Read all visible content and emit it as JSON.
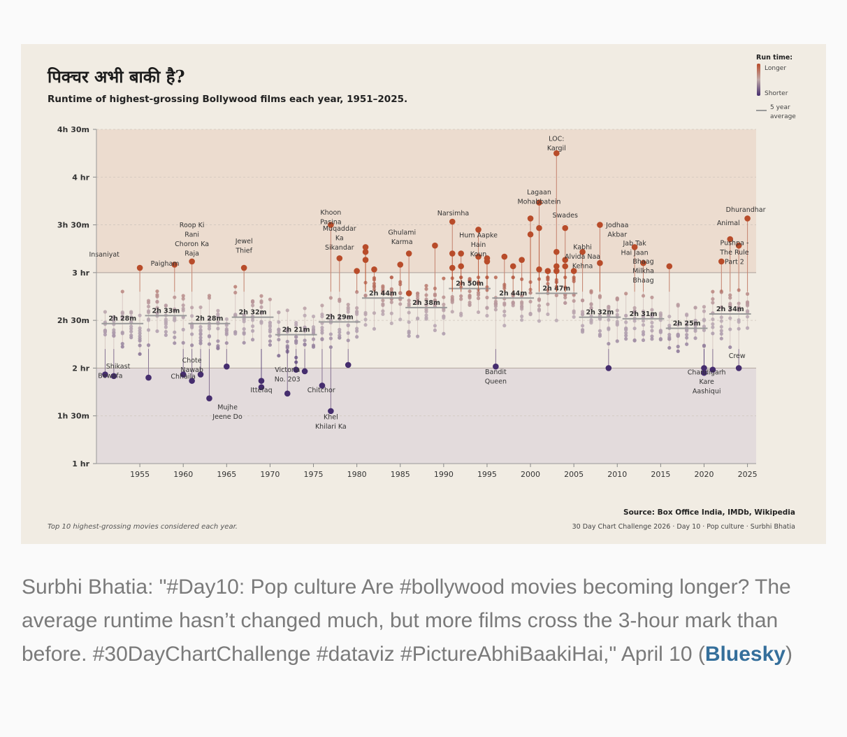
{
  "chart_data": {
    "type": "scatter",
    "title": "पिक्चर अभी बाकी है?",
    "subtitle": "Runtime of highest-grossing Bollywood films each year, 1951–2025.",
    "y_ticks": [
      "1 hr",
      "1h 30m",
      "2 hr",
      "2h 30m",
      "3 hr",
      "3h 30m",
      "4 hr",
      "4h 30m"
    ],
    "y_tick_values": [
      60,
      90,
      120,
      150,
      180,
      210,
      240,
      270
    ],
    "ylim": [
      60,
      270
    ],
    "x_ticks": [
      "1955",
      "1960",
      "1965",
      "1970",
      "1975",
      "1980",
      "1985",
      "1990",
      "1995",
      "2000",
      "2005",
      "2010",
      "2015",
      "2020",
      "2025"
    ],
    "x_tick_values": [
      1955,
      1960,
      1965,
      1970,
      1975,
      1980,
      1985,
      1990,
      1995,
      2000,
      2005,
      2010,
      2015,
      2020,
      2025
    ],
    "xlim": [
      1950,
      2026
    ],
    "legend": {
      "title": "Run time:",
      "longer": "Longer",
      "shorter": "Shorter",
      "average_line_1": "5 year",
      "average_line_2": "average",
      "placement": "top-right"
    },
    "colors": {
      "long": "#b84c2a",
      "short": "#452d6e",
      "mid": "#b9a8b3",
      "band_long": "#ecdccf",
      "band_short": "#e3dbdc",
      "avg": "#9a9a9a"
    },
    "five_year_averages": [
      {
        "label": "2h 28m",
        "start": 1951,
        "end": 1955,
        "value": 148
      },
      {
        "label": "2h 33m",
        "start": 1956,
        "end": 1960,
        "value": 153
      },
      {
        "label": "2h 28m",
        "start": 1961,
        "end": 1965,
        "value": 148
      },
      {
        "label": "2h 32m",
        "start": 1966,
        "end": 1970,
        "value": 152
      },
      {
        "label": "2h 21m",
        "start": 1971,
        "end": 1975,
        "value": 141
      },
      {
        "label": "2h 29m",
        "start": 1976,
        "end": 1980,
        "value": 149
      },
      {
        "label": "2h 44m",
        "start": 1981,
        "end": 1985,
        "value": 164
      },
      {
        "label": "2h 38m",
        "start": 1986,
        "end": 1990,
        "value": 158
      },
      {
        "label": "2h 50m",
        "start": 1991,
        "end": 1995,
        "value": 170
      },
      {
        "label": "2h 44m",
        "start": 1996,
        "end": 2000,
        "value": 164
      },
      {
        "label": "2h 47m",
        "start": 2001,
        "end": 2005,
        "value": 167
      },
      {
        "label": "2h 32m",
        "start": 2006,
        "end": 2010,
        "value": 152
      },
      {
        "label": "2h 31m",
        "start": 2011,
        "end": 2015,
        "value": 151
      },
      {
        "label": "2h 25m",
        "start": 2016,
        "end": 2020,
        "value": 145
      },
      {
        "label": "2h 34m",
        "start": 2021,
        "end": 2025,
        "value": 154
      }
    ],
    "highlighted_films": [
      {
        "year": 1951,
        "runtime": 116,
        "label": "Bewafa"
      },
      {
        "year": 1952,
        "runtime": 115,
        "label": "Shikast"
      },
      {
        "year": 1955,
        "runtime": 183,
        "label": "Insaniyat"
      },
      {
        "year": 1956,
        "runtime": 114
      },
      {
        "year": 1959,
        "runtime": 185,
        "label": "Paigham"
      },
      {
        "year": 1960,
        "runtime": 116
      },
      {
        "year": 1961,
        "runtime": 112,
        "label": "Chhaila"
      },
      {
        "year": 1961,
        "runtime": 187,
        "label": "Roop Ki Rani Choron Ka Raja"
      },
      {
        "year": 1962,
        "runtime": 116,
        "label": "Chote Nawab"
      },
      {
        "year": 1963,
        "runtime": 101,
        "label": "Mujhe Jeene Do"
      },
      {
        "year": 1965,
        "runtime": 121
      },
      {
        "year": 1967,
        "runtime": 183,
        "label": "Jewel Thief"
      },
      {
        "year": 1969,
        "runtime": 112
      },
      {
        "year": 1969,
        "runtime": 108,
        "label": "Ittefaq"
      },
      {
        "year": 1972,
        "runtime": 104
      },
      {
        "year": 1973,
        "runtime": 119,
        "label": "Victoria No. 203"
      },
      {
        "year": 1974,
        "runtime": 118
      },
      {
        "year": 1976,
        "runtime": 109,
        "label": "Chitchor"
      },
      {
        "year": 1977,
        "runtime": 93,
        "label": "Khel Khilari Ka"
      },
      {
        "year": 1977,
        "runtime": 210,
        "label": "Khoon Pasina"
      },
      {
        "year": 1978,
        "runtime": 189,
        "label": "Muqaddar Ka Sikandar"
      },
      {
        "year": 1979,
        "runtime": 122
      },
      {
        "year": 1980,
        "runtime": 181
      },
      {
        "year": 1981,
        "runtime": 196
      },
      {
        "year": 1981,
        "runtime": 193
      },
      {
        "year": 1981,
        "runtime": 188
      },
      {
        "year": 1982,
        "runtime": 182
      },
      {
        "year": 1985,
        "runtime": 185
      },
      {
        "year": 1986,
        "runtime": 192,
        "label": "Ghulami"
      },
      {
        "year": 1986,
        "runtime": 167,
        "label": "Karma"
      },
      {
        "year": 1989,
        "runtime": 197
      },
      {
        "year": 1991,
        "runtime": 212,
        "label": "Narsimha"
      },
      {
        "year": 1991,
        "runtime": 192
      },
      {
        "year": 1991,
        "runtime": 183
      },
      {
        "year": 1992,
        "runtime": 192
      },
      {
        "year": 1992,
        "runtime": 184
      },
      {
        "year": 1994,
        "runtime": 207,
        "label": "Hum Aapke Hain Koun"
      },
      {
        "year": 1994,
        "runtime": 190
      },
      {
        "year": 1995,
        "runtime": 187
      },
      {
        "year": 1995,
        "runtime": 189
      },
      {
        "year": 1996,
        "runtime": 121,
        "label": "Bandit Queen"
      },
      {
        "year": 1997,
        "runtime": 190
      },
      {
        "year": 1998,
        "runtime": 184
      },
      {
        "year": 1999,
        "runtime": 188
      },
      {
        "year": 2000,
        "runtime": 214,
        "label": "Mohabbatein"
      },
      {
        "year": 2000,
        "runtime": 204
      },
      {
        "year": 2001,
        "runtime": 224,
        "label": "Lagaan"
      },
      {
        "year": 2001,
        "runtime": 208
      },
      {
        "year": 2001,
        "runtime": 182
      },
      {
        "year": 2002,
        "runtime": 181
      },
      {
        "year": 2003,
        "runtime": 255,
        "label": "LOC: Kargil"
      },
      {
        "year": 2003,
        "runtime": 193
      },
      {
        "year": 2003,
        "runtime": 184
      },
      {
        "year": 2003,
        "runtime": 181
      },
      {
        "year": 2004,
        "runtime": 208,
        "label": "Swades"
      },
      {
        "year": 2004,
        "runtime": 188
      },
      {
        "year": 2004,
        "runtime": 184
      },
      {
        "year": 2005,
        "runtime": 181
      },
      {
        "year": 2006,
        "runtime": 193,
        "label": "Kabhi Alvida Naa Kehna"
      },
      {
        "year": 2008,
        "runtime": 210,
        "label": "Jodhaa Akbar"
      },
      {
        "year": 2008,
        "runtime": 186
      },
      {
        "year": 2009,
        "runtime": 120
      },
      {
        "year": 2012,
        "runtime": 196,
        "label": "Jab Tak Hai Jaan"
      },
      {
        "year": 2013,
        "runtime": 186,
        "label": "Bhaag Milkha Bhaag"
      },
      {
        "year": 2016,
        "runtime": 184
      },
      {
        "year": 2020,
        "runtime": 120
      },
      {
        "year": 2020,
        "runtime": 117
      },
      {
        "year": 2021,
        "runtime": 119,
        "label": "Chandigarh Kare Aashiqui"
      },
      {
        "year": 2022,
        "runtime": 187,
        "label": "Pushpa - The Rule Part 2"
      },
      {
        "year": 2023,
        "runtime": 201,
        "label": "Animal"
      },
      {
        "year": 2024,
        "runtime": 197
      },
      {
        "year": 2024,
        "runtime": 120,
        "label": "Crew"
      },
      {
        "year": 2025,
        "runtime": 214,
        "label": "Dhurandhar"
      }
    ],
    "annotations": [
      {
        "lines": [
          "Shikast"
        ],
        "year": 1952.5,
        "runtime": 119.7
      },
      {
        "lines": [
          "Bewafa"
        ],
        "year": 1951.6,
        "runtime": 113.8
      },
      {
        "lines": [
          "Insaniyat"
        ],
        "year": 1950.9,
        "runtime": 190.1
      },
      {
        "lines": [
          "Paigham"
        ],
        "year": 1957.9,
        "runtime": 184.4
      },
      {
        "lines": [
          "Roop Ki",
          "Rani",
          "Choron Ka",
          "Raja"
        ],
        "year": 1961.0,
        "runtime": 208.5
      },
      {
        "lines": [
          "Chote",
          "Nawab"
        ],
        "year": 1961.0,
        "runtime": 123.5
      },
      {
        "lines": [
          "Chhaila"
        ],
        "year": 1960.0,
        "runtime": 113.3
      },
      {
        "lines": [
          "Mujhe",
          "Jeene Do"
        ],
        "year": 1965.1,
        "runtime": 94.1
      },
      {
        "lines": [
          "Jewel",
          "Thief"
        ],
        "year": 1967.0,
        "runtime": 198.4
      },
      {
        "lines": [
          "Victoria",
          "No. 203"
        ],
        "year": 1972.0,
        "runtime": 117.6
      },
      {
        "lines": [
          "Ittefaq"
        ],
        "year": 1969.0,
        "runtime": 104.8
      },
      {
        "lines": [
          "Chitchor"
        ],
        "year": 1975.9,
        "runtime": 104.8
      },
      {
        "lines": [
          "Khel",
          "Khilari Ka"
        ],
        "year": 1977.0,
        "runtime": 88.0
      },
      {
        "lines": [
          "Khoon",
          "Pasina"
        ],
        "year": 1977.0,
        "runtime": 216.5
      },
      {
        "lines": [
          "Muqaddar",
          "Ka",
          "Sikandar"
        ],
        "year": 1978.0,
        "runtime": 206.2
      },
      {
        "lines": [
          "Ghulami",
          "Karma"
        ],
        "year": 1985.2,
        "runtime": 203.9
      },
      {
        "lines": [
          "Narsimha"
        ],
        "year": 1991.1,
        "runtime": 216.0
      },
      {
        "lines": [
          "Hum Aapke",
          "Hain",
          "Koun"
        ],
        "year": 1994.0,
        "runtime": 202.1
      },
      {
        "lines": [
          "Bandit",
          "Queen"
        ],
        "year": 1996.0,
        "runtime": 116.2
      },
      {
        "lines": [
          "Lagaan"
        ],
        "year": 2001.0,
        "runtime": 229.2
      },
      {
        "lines": [
          "Mohabbatein"
        ],
        "year": 2001.0,
        "runtime": 223.3
      },
      {
        "lines": [
          "LOC:",
          "Kargil"
        ],
        "year": 2003.0,
        "runtime": 262.8
      },
      {
        "lines": [
          "Swades"
        ],
        "year": 2004.0,
        "runtime": 214.6
      },
      {
        "lines": [
          "Jodhaa",
          "Akbar"
        ],
        "year": 2010.0,
        "runtime": 208.5
      },
      {
        "lines": [
          "Kabhi",
          "Alvida Naa",
          "Kehna"
        ],
        "year": 2006.0,
        "runtime": 194.7
      },
      {
        "lines": [
          "Jab Tak",
          "Hai Jaan"
        ],
        "year": 2012.0,
        "runtime": 197.1
      },
      {
        "lines": [
          "Bhaag",
          "Milkha",
          "Bhaag"
        ],
        "year": 2013.0,
        "runtime": 185.7
      },
      {
        "lines": [
          "Dhurandhar"
        ],
        "year": 2024.8,
        "runtime": 218.2
      },
      {
        "lines": [
          "Animal"
        ],
        "year": 2022.8,
        "runtime": 209.8
      },
      {
        "lines": [
          "Pushpa -",
          "The Rule",
          "Part 2"
        ],
        "year": 2023.5,
        "runtime": 197.4
      },
      {
        "lines": [
          "Crew"
        ],
        "year": 2023.8,
        "runtime": 126.3
      },
      {
        "lines": [
          "Chandigarh",
          "Kare",
          "Aashiqui"
        ],
        "year": 2020.3,
        "runtime": 116.0
      }
    ],
    "footnote": "Top 10 highest-grossing movies considered each year.",
    "source": "Source: Box Office India, IMDb, Wikipedia",
    "credit": "30 Day Chart Challenge 2026  ·  Day 10  ·  Pop culture  ·  Surbhi Bhatia",
    "grid": "dashed horizontal"
  },
  "caption": {
    "text": "Surbhi Bhatia: \"#Day10: Pop culture Are #bollywood movies becoming longer? The average runtime hasn’t changed much, but more films cross the 3-hour mark than before. #30DayChartChallenge #dataviz #PictureAbhiBaakiHai,\" April 10 (",
    "link": "Bluesky",
    "end": ")"
  }
}
